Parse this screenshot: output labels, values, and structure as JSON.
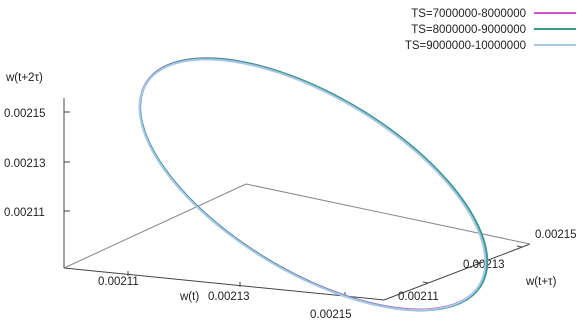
{
  "chart_data": {
    "type": "line",
    "projection": "3d",
    "axes": {
      "x": {
        "label": "w(t)",
        "ticks": [
          "0.00211",
          "0.00213",
          "0.00215"
        ],
        "range": [
          0.0021,
          0.00216
        ]
      },
      "y": {
        "label": "w(t+τ)",
        "ticks": [
          "0.00211",
          "0.00213",
          "0.00215"
        ],
        "range": [
          0.0021,
          0.00216
        ]
      },
      "z": {
        "label": "w(t+2τ)",
        "ticks": [
          "0.00211",
          "0.00213",
          "0.00215"
        ],
        "range": [
          0.0021,
          0.00216
        ]
      }
    },
    "legend_position": "top-right",
    "series": [
      {
        "name": "TS=7000000-8000000",
        "color": "#cc55cc"
      },
      {
        "name": "TS=8000000-9000000",
        "color": "#3a9a8a"
      },
      {
        "name": "TS=9000000-10000000",
        "color": "#a9c6e8"
      }
    ],
    "orbit": {
      "shape": "closed loop (limit cycle)",
      "center": [
        0.00213,
        0.00213,
        0.00213
      ],
      "amplitude": 3e-05
    }
  }
}
